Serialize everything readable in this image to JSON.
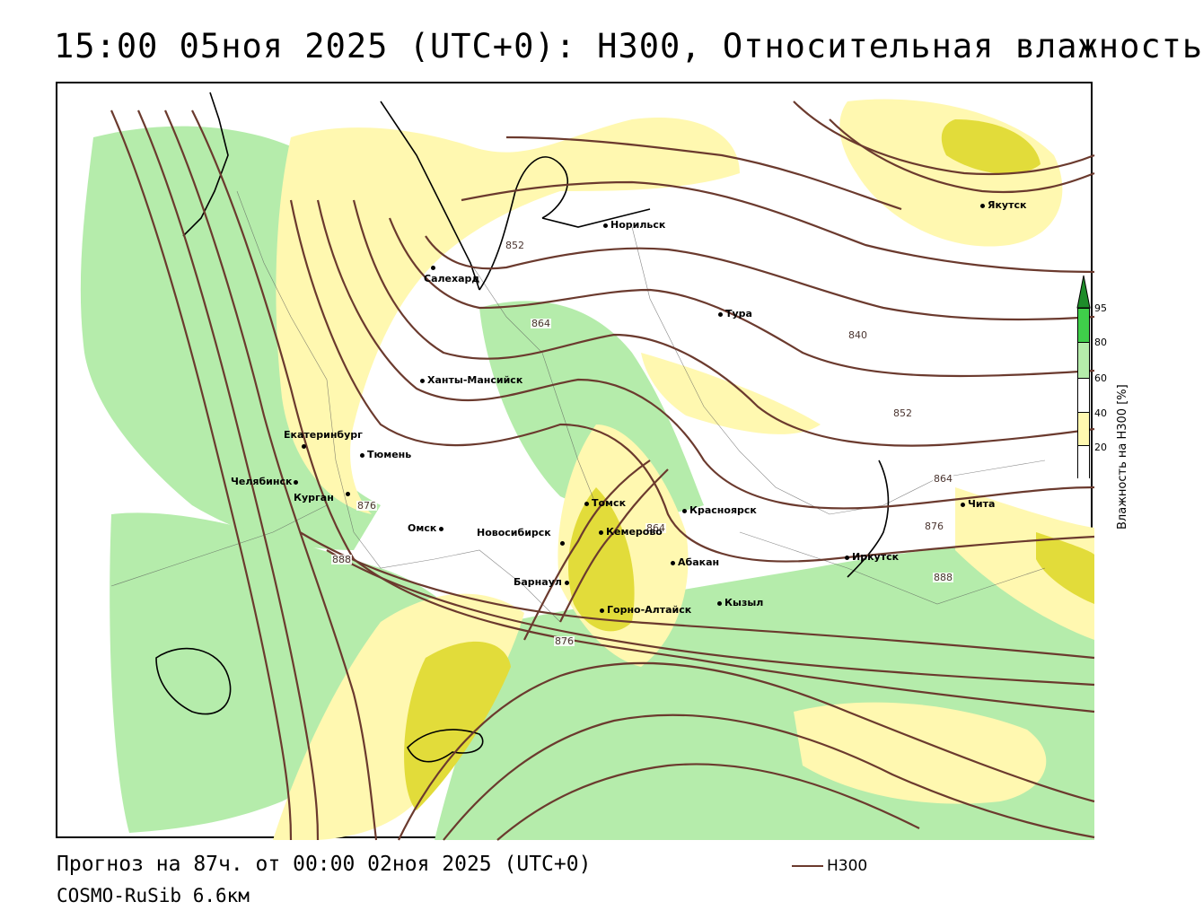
{
  "title": "15:00 05ноя 2025 (UTC+0): H300, Относительная влажность",
  "footer": {
    "forecast": "Прогноз на 87ч. от 00:00 02ноя 2025 (UTC+0)",
    "model": "COSMO-RuSib 6.6км"
  },
  "line_legend": {
    "label": "H300",
    "color": "#6b3a2e"
  },
  "colorbar": {
    "title": "Влажность на H300 [%]",
    "ticks": [
      "95",
      "80",
      "60",
      "40",
      "20"
    ],
    "colors": {
      "95_100": "#1e8c2a",
      "80_95": "#3fcf4a",
      "60_80": "#b5ecab",
      "40_60": "#ffffff",
      "20_40": "#fff8b0",
      "0_20": "#ffffff"
    }
  },
  "cities": [
    {
      "name": "Якутск"
    },
    {
      "name": "Норильск"
    },
    {
      "name": "Салехард"
    },
    {
      "name": "Тура"
    },
    {
      "name": "Ханты-Мансийск"
    },
    {
      "name": "Екатеринбург"
    },
    {
      "name": "Тюмень"
    },
    {
      "name": "Челябинск"
    },
    {
      "name": "Курган"
    },
    {
      "name": "Омск"
    },
    {
      "name": "Новосибирск"
    },
    {
      "name": "Томск"
    },
    {
      "name": "Кемерово"
    },
    {
      "name": "Красноярск"
    },
    {
      "name": "Абакан"
    },
    {
      "name": "Барнаул"
    },
    {
      "name": "Горно-Алтайск"
    },
    {
      "name": "Кызыл"
    },
    {
      "name": "Иркутск"
    },
    {
      "name": "Чита"
    }
  ],
  "contour_labels": [
    "852",
    "864",
    "840",
    "852",
    "864",
    "876",
    "888",
    "876",
    "888",
    "864",
    "876"
  ],
  "colors": {
    "contour": "#6b3a2e",
    "humidity_yellow": "#fff8b0",
    "humidity_olive": "#e2dc3a",
    "humidity_light_green": "#b5ecab",
    "coast": "#000000"
  }
}
